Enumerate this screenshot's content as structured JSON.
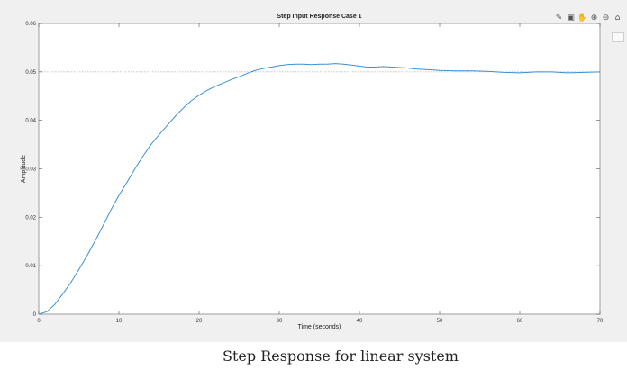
{
  "caption": "Step Response for linear system",
  "toolbar": {
    "icons": [
      "brush-icon",
      "datatip-icon",
      "pan-icon",
      "zoom-in-icon",
      "zoom-out-icon",
      "home-icon"
    ]
  },
  "chart_data": {
    "type": "line",
    "title": "Step Input Response Case 1",
    "xlabel": "Time (seconds)",
    "ylabel": "Amplitude",
    "xlim": [
      0,
      70
    ],
    "ylim": [
      0,
      0.06
    ],
    "xticks": [
      0,
      10,
      20,
      30,
      40,
      50,
      60,
      70
    ],
    "yticks": [
      0,
      0.01,
      0.02,
      0.03,
      0.04,
      0.05,
      0.06
    ],
    "ytick_labels": [
      "0",
      "0.01",
      "0.02",
      "0.03",
      "0.04",
      "0.05",
      "0.06"
    ],
    "xtick_labels": [
      "0",
      "10",
      "20",
      "30",
      "40",
      "50",
      "60",
      "70"
    ],
    "reference_level": 0.05,
    "grid": false,
    "line_color": "#3b8fd6",
    "ref_color": "#bdbdbd",
    "series": [
      {
        "x": [
          0,
          1,
          2,
          3,
          4,
          5,
          6,
          7,
          8,
          9,
          10,
          11,
          12,
          13,
          14,
          15,
          16,
          17,
          18,
          19,
          20,
          21,
          22,
          23,
          24,
          25,
          26,
          27,
          28,
          29,
          30,
          31,
          32,
          33,
          34,
          35,
          36,
          37,
          38,
          39,
          40,
          41,
          42,
          43,
          44,
          45,
          46,
          47,
          48,
          49,
          50,
          52,
          54,
          56,
          58,
          60,
          62,
          64,
          66,
          68,
          70
        ],
        "y": [
          0,
          0.0005,
          0.002,
          0.0042,
          0.0065,
          0.0092,
          0.012,
          0.015,
          0.0182,
          0.0215,
          0.0245,
          0.0272,
          0.03,
          0.0326,
          0.035,
          0.037,
          0.0389,
          0.0408,
          0.0425,
          0.044,
          0.0452,
          0.0462,
          0.047,
          0.0477,
          0.0484,
          0.049,
          0.0497,
          0.0503,
          0.0507,
          0.051,
          0.0513,
          0.0515,
          0.0516,
          0.0516,
          0.0515,
          0.0516,
          0.0516,
          0.0517,
          0.0516,
          0.0514,
          0.0512,
          0.051,
          0.051,
          0.0511,
          0.051,
          0.0509,
          0.0508,
          0.0506,
          0.0505,
          0.0504,
          0.0503,
          0.0502,
          0.0502,
          0.0501,
          0.0499,
          0.0498,
          0.05,
          0.05,
          0.0498,
          0.0499,
          0.05
        ]
      }
    ]
  }
}
